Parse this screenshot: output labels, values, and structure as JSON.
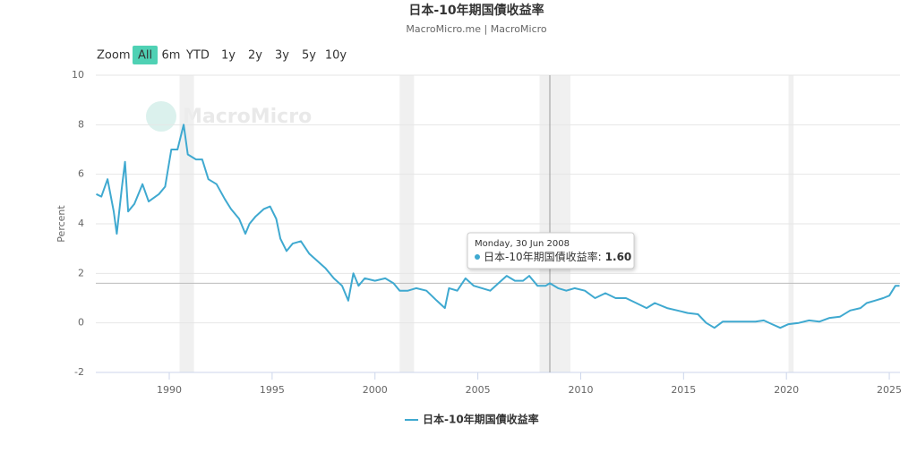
{
  "chart_data": {
    "type": "line",
    "title": "日本-10年期国債收益率",
    "subtitle": "MacroMicro.me | MacroMicro",
    "watermark": "MacroMicro",
    "range_selector": {
      "label": "Zoom",
      "buttons": [
        "All",
        "6m",
        "YTD",
        "1y",
        "2y",
        "3y",
        "5y",
        "10y"
      ],
      "selected": 0
    },
    "y_label": "Percent",
    "xlim": [
      1986.43,
      2025.52
    ],
    "xticks": [
      1990,
      1995,
      2000,
      2005,
      2010,
      2015,
      2020,
      2025
    ],
    "ylim": [
      -2,
      10
    ],
    "yticks": [
      -2,
      0,
      2,
      4,
      6,
      8,
      10
    ],
    "grid": true,
    "shaded_ranges": [
      [
        1990.5,
        1991.2
      ],
      [
        2001.2,
        2001.9
      ],
      [
        2008.0,
        2009.5
      ],
      [
        2020.1,
        2020.35
      ]
    ],
    "x": [
      1986.45,
      1986.7,
      1987.0,
      1987.3,
      1987.45,
      1987.7,
      1987.85,
      1988.0,
      1988.3,
      1988.7,
      1989.0,
      1989.5,
      1989.8,
      1990.1,
      1990.4,
      1990.7,
      1990.9,
      1991.3,
      1991.6,
      1991.9,
      1992.3,
      1992.7,
      1993.0,
      1993.4,
      1993.7,
      1993.9,
      1994.2,
      1994.6,
      1994.9,
      1995.2,
      1995.4,
      1995.7,
      1996.0,
      1996.4,
      1996.8,
      1997.2,
      1997.6,
      1998.0,
      1998.4,
      1998.7,
      1998.95,
      1999.2,
      1999.5,
      2000.0,
      2000.5,
      2000.9,
      2001.2,
      2001.6,
      2002.0,
      2002.5,
      2003.0,
      2003.4,
      2003.6,
      2004.0,
      2004.4,
      2004.8,
      2005.2,
      2005.6,
      2006.0,
      2006.4,
      2006.8,
      2007.2,
      2007.5,
      2007.9,
      2008.3,
      2008.5,
      2008.9,
      2009.3,
      2009.7,
      2010.2,
      2010.7,
      2011.2,
      2011.7,
      2012.2,
      2012.7,
      2013.2,
      2013.6,
      2014.2,
      2014.7,
      2015.2,
      2015.7,
      2016.1,
      2016.5,
      2016.9,
      2017.5,
      2018.0,
      2018.5,
      2018.9,
      2019.3,
      2019.7,
      2020.1,
      2020.6,
      2021.1,
      2021.6,
      2022.1,
      2022.6,
      2023.1,
      2023.6,
      2023.9,
      2024.3,
      2024.7,
      2025.0,
      2025.3,
      2025.5
    ],
    "series": [
      {
        "name": "日本-10年期国債收益率",
        "color": "#3fa9d0",
        "values": [
          5.2,
          5.1,
          5.8,
          4.5,
          3.6,
          5.5,
          6.5,
          4.5,
          4.8,
          5.6,
          4.9,
          5.2,
          5.5,
          7.0,
          7.0,
          8.0,
          6.8,
          6.6,
          6.6,
          5.8,
          5.6,
          5.0,
          4.6,
          4.2,
          3.6,
          4.0,
          4.3,
          4.6,
          4.7,
          4.2,
          3.4,
          2.9,
          3.2,
          3.3,
          2.8,
          2.5,
          2.2,
          1.8,
          1.5,
          0.9,
          2.0,
          1.5,
          1.8,
          1.7,
          1.8,
          1.6,
          1.3,
          1.3,
          1.4,
          1.3,
          0.9,
          0.6,
          1.4,
          1.3,
          1.8,
          1.5,
          1.4,
          1.3,
          1.6,
          1.9,
          1.7,
          1.7,
          1.9,
          1.5,
          1.5,
          1.6,
          1.4,
          1.3,
          1.4,
          1.3,
          1.0,
          1.2,
          1.0,
          1.0,
          0.8,
          0.6,
          0.8,
          0.6,
          0.5,
          0.4,
          0.35,
          0.0,
          -0.2,
          0.05,
          0.05,
          0.05,
          0.05,
          0.1,
          -0.05,
          -0.2,
          -0.05,
          0.0,
          0.1,
          0.05,
          0.2,
          0.25,
          0.5,
          0.6,
          0.8,
          0.9,
          1.0,
          1.1,
          1.5,
          1.5
        ]
      }
    ],
    "tooltip": {
      "date": "Monday, 30 Jun 2008",
      "label": "日本-10年期国債收益率:",
      "x": 2008.5,
      "value": 1.6,
      "value_label": "1.60"
    }
  }
}
